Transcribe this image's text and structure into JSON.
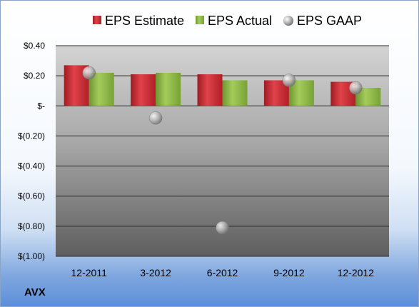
{
  "ticker": "AVX",
  "chart_data": {
    "type": "bar",
    "categories": [
      "12-2011",
      "3-2012",
      "6-2012",
      "9-2012",
      "12-2012"
    ],
    "series": [
      {
        "name": "EPS Estimate",
        "kind": "bar",
        "color": "#c0232b",
        "values": [
          0.27,
          0.21,
          0.21,
          0.17,
          0.16
        ]
      },
      {
        "name": "EPS Actual",
        "kind": "bar",
        "color": "#86b040",
        "values": [
          0.22,
          0.22,
          0.17,
          0.17,
          0.12
        ]
      },
      {
        "name": "EPS GAAP",
        "kind": "scatter",
        "color": "#a6a6a6",
        "values": [
          0.22,
          -0.08,
          -0.81,
          0.17,
          0.12
        ]
      }
    ],
    "ylim": [
      -1.0,
      0.4
    ],
    "yticks": [
      0.4,
      0.2,
      0.0,
      -0.2,
      -0.4,
      -0.6,
      -0.8,
      -1.0
    ],
    "ytick_labels": [
      "$0.40",
      "$0.20",
      "$-",
      "$(0.20)",
      "$(0.40)",
      "$(0.60)",
      "$(0.80)",
      "$(1.00)"
    ],
    "grid": true,
    "legend_position": "top"
  }
}
